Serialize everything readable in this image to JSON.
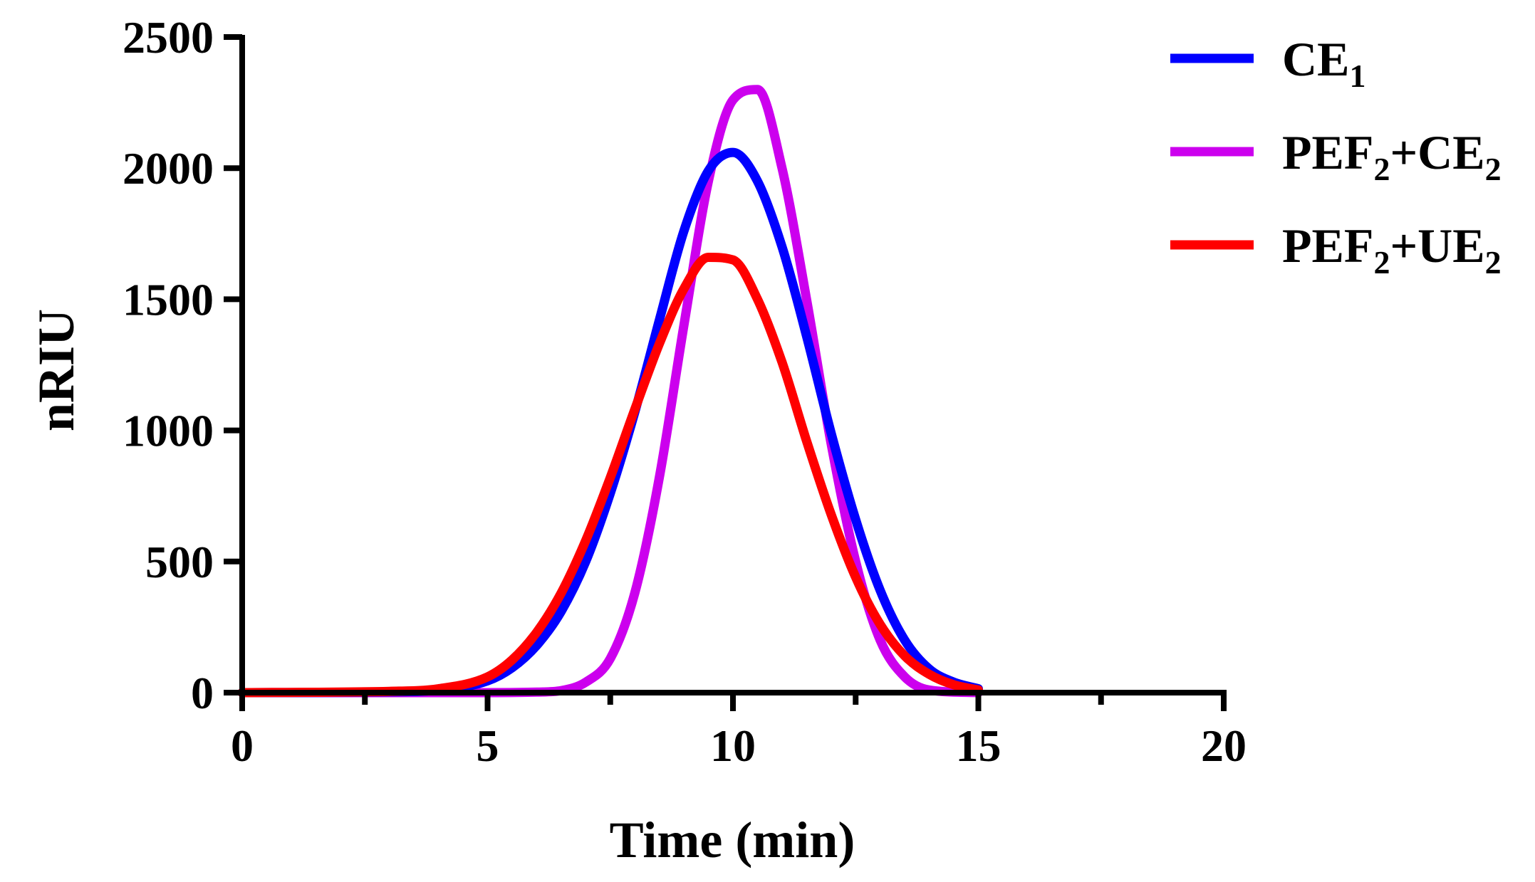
{
  "chart_data": {
    "type": "line",
    "title": "",
    "xlabel": "Time (min)",
    "ylabel": "nRIU",
    "xlim": [
      0,
      20
    ],
    "ylim": [
      0,
      2500
    ],
    "x_ticks": [
      0,
      5,
      10,
      15,
      20
    ],
    "x_minor_ticks": [
      2.5,
      7.5,
      12.5,
      17.5
    ],
    "y_ticks": [
      0,
      500,
      1000,
      1500,
      2000,
      2500
    ],
    "grid": false,
    "legend_position": "top-right",
    "series": [
      {
        "name": "CE1",
        "label_main": "CE",
        "label_sub": "1",
        "label_parts": [
          {
            "text": "CE"
          },
          {
            "text": "1",
            "sub": true
          }
        ],
        "color": "#0000ff",
        "x": [
          0,
          3,
          4,
          5,
          5.5,
          6,
          6.5,
          7,
          7.5,
          8,
          8.5,
          9,
          9.5,
          10,
          10.5,
          11,
          11.5,
          12,
          12.5,
          13,
          13.5,
          14,
          14.5,
          15
        ],
        "y": [
          0,
          3,
          10,
          45,
          95,
          180,
          310,
          500,
          760,
          1070,
          1420,
          1760,
          1990,
          2060,
          1950,
          1700,
          1360,
          990,
          660,
          390,
          200,
          90,
          40,
          15
        ]
      },
      {
        "name": "PEF2+CE2",
        "label_main": "PEF",
        "label_sub": "2",
        "label_parts": [
          {
            "text": "PEF"
          },
          {
            "text": "2",
            "sub": true
          },
          {
            "text": "+CE"
          },
          {
            "text": "2",
            "sub": true
          }
        ],
        "color": "#cc00ee",
        "x": [
          0,
          5,
          6,
          6.5,
          7,
          7.5,
          8,
          8.5,
          9,
          9.5,
          10,
          10.5,
          11,
          11.5,
          12,
          12.5,
          13,
          13.5,
          14,
          15
        ],
        "y": [
          0,
          0,
          2,
          8,
          40,
          130,
          380,
          820,
          1400,
          1950,
          2260,
          2300,
          2000,
          1500,
          950,
          500,
          200,
          60,
          10,
          0
        ]
      },
      {
        "name": "PEF2+UE2",
        "label_main": "PEF",
        "label_sub": "2",
        "label_parts": [
          {
            "text": "PEF"
          },
          {
            "text": "2",
            "sub": true
          },
          {
            "text": "+UE"
          },
          {
            "text": "2",
            "sub": true
          }
        ],
        "color": "#ff0000",
        "x": [
          0,
          3,
          4,
          5,
          5.5,
          6,
          6.5,
          7,
          7.5,
          8,
          8.5,
          9,
          9.5,
          10,
          10.5,
          11,
          11.5,
          12,
          12.5,
          13,
          13.5,
          14,
          14.5,
          15
        ],
        "y": [
          0,
          5,
          15,
          60,
          125,
          230,
          380,
          580,
          820,
          1080,
          1330,
          1540,
          1660,
          1650,
          1500,
          1260,
          960,
          680,
          440,
          260,
          140,
          70,
          30,
          10
        ]
      }
    ]
  }
}
